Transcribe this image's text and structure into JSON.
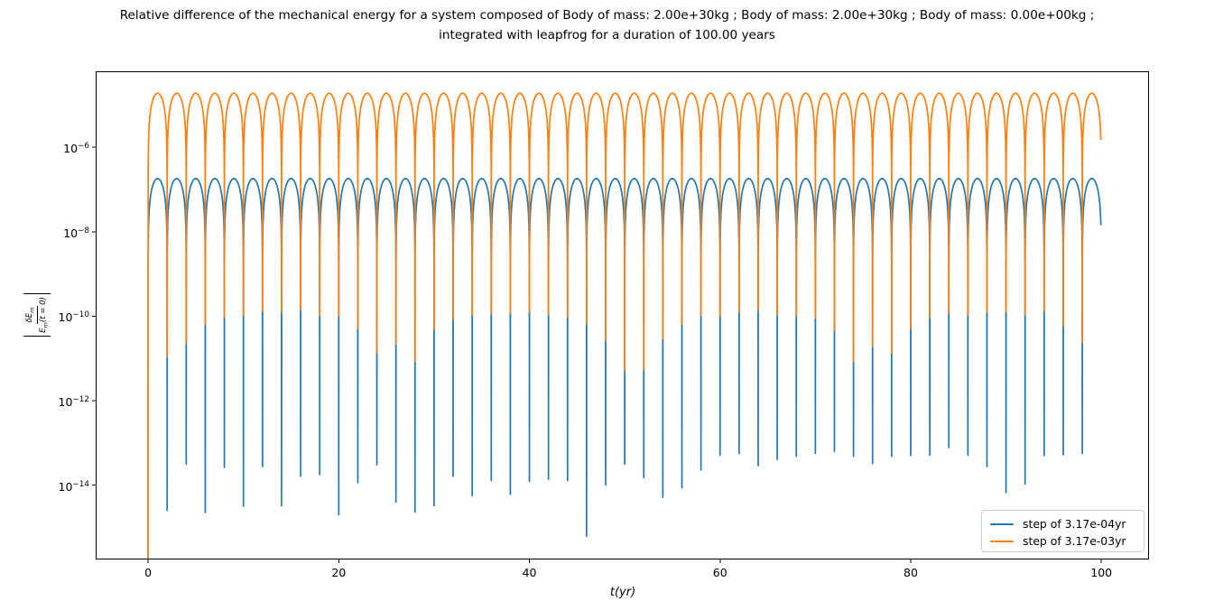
{
  "figure": {
    "title_line1": "Relative difference of the mechanical energy for a system composed of Body of mass: 2.00e+30kg ; Body of mass: 2.00e+30kg ; Body of mass: 0.00e+00kg ;",
    "title_line2": "integrated with leapfrog for a duration of 100.00 years"
  },
  "axes": {
    "xlabel": "t(yr)",
    "ylabel": {
      "num_pre": "δE",
      "num_sub": "m",
      "den_pre": "E",
      "den_sub": "m",
      "den_post": "(t = 0)"
    }
  },
  "chart_data": {
    "type": "line",
    "title": "Relative difference of the mechanical energy for a system composed of Body of mass: 2.00e+30kg ; Body of mass: 2.00e+30kg ; Body of mass: 0.00e+00kg ; integrated with leapfrog for a duration of 100.00 years",
    "xlabel": "t(yr)",
    "ylabel": "|δE_m / E_m(t = 0)|",
    "yscale": "log",
    "grid": false,
    "xlim": [
      -5.5,
      105
    ],
    "ylim_log10": [
      -15.76,
      -4.2
    ],
    "x_ticks": [
      0,
      20,
      40,
      60,
      80,
      100
    ],
    "y_tick_exponents": [
      -6,
      -8,
      -10,
      -12,
      -14
    ],
    "legend": {
      "position": "lower right",
      "entries": [
        "step of 3.17e-04yr",
        "step of 3.17e-03yr"
      ]
    },
    "series": [
      {
        "name": "step of 3.17e-04yr",
        "color": "#1f77b4",
        "model": "periodic-log-arches",
        "period_yr": 2.0,
        "t_end_yr": 99.96,
        "peak_log10": -6.74,
        "peak_value_approx": 1.8e-07,
        "cusp_depths_log10": [
          -17,
          -14.6,
          -13.5,
          -14.65,
          -13.58,
          -14.5,
          -13.56,
          -14.49,
          -13.79,
          -13.75,
          -14.7,
          -13.94,
          -13.52,
          -14.4,
          -14.64,
          -14.49,
          -13.79,
          -14.25,
          -13.89,
          -14.22,
          -13.91,
          -13.86,
          -13.89,
          -15.21,
          -14.0,
          -13.5,
          -13.82,
          -14.29,
          -14.06,
          -13.64,
          -13.29,
          -13.25,
          -13.54,
          -13.39,
          -13.32,
          -13.25,
          -13.2,
          -13.32,
          -13.49,
          -13.32,
          -13.3,
          -13.29,
          -13.11,
          -13.29,
          -13.56,
          -14.18,
          -13.97,
          -13.3,
          -13.28,
          -13.25
        ]
      },
      {
        "name": "step of 3.17e-03yr",
        "color": "#ff7f0e",
        "model": "periodic-log-arches",
        "period_yr": 2.0,
        "t_end_yr": 99.96,
        "peak_log10": -4.72,
        "peak_value_approx": 1.9e-05,
        "cusp_depths_log10": [
          -17,
          -10.95,
          -10.63,
          -10.2,
          -10.02,
          -9.97,
          -9.87,
          -9.9,
          -9.86,
          -9.99,
          -10.0,
          -10.29,
          -10.86,
          -10.66,
          -11.07,
          -10.3,
          -10.07,
          -9.97,
          -9.92,
          -9.93,
          -9.9,
          -9.97,
          -10.02,
          -10.18,
          -10.58,
          -11.28,
          -11.27,
          -10.54,
          -10.18,
          -9.99,
          -9.99,
          -9.9,
          -9.87,
          -9.97,
          -9.99,
          -10.04,
          -10.33,
          -11.07,
          -10.72,
          -10.87,
          -10.3,
          -10.04,
          -9.92,
          -9.97,
          -9.9,
          -9.9,
          -9.97,
          -9.87,
          -10.22,
          -10.63
        ]
      }
    ]
  }
}
